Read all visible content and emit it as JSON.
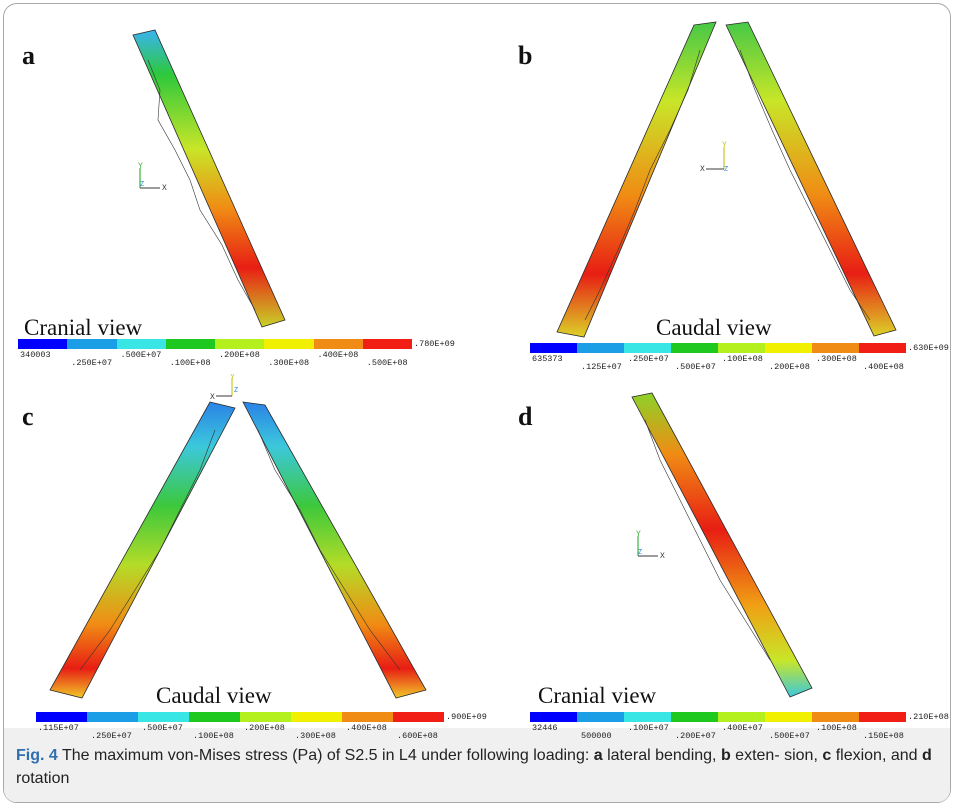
{
  "figure": {
    "caption": {
      "label": "Fig. 4",
      "text_parts": [
        {
          "t": "  The maximum von-Mises stress (Pa) of S2.5 in L4 under following loading: ",
          "b": false
        },
        {
          "t": "a",
          "b": true
        },
        {
          "t": " lateral bending, ",
          "b": false
        },
        {
          "t": "b",
          "b": true
        },
        {
          "t": " exten- sion, ",
          "b": false
        },
        {
          "t": "c",
          "b": true
        },
        {
          "t": " flexion, and ",
          "b": false
        },
        {
          "t": "d",
          "b": true
        },
        {
          "t": " rotation",
          "b": false
        }
      ]
    },
    "panels": [
      {
        "letter": "a",
        "view_label": "Cranial view",
        "colorbar": {
          "colors": [
            "#0000ff",
            "#1c9ee6",
            "#38e6e6",
            "#1ec81e",
            "#b4f01e",
            "#f0f000",
            "#f08c14",
            "#f01e14"
          ],
          "ticks": [
            "340003",
            ".250E+07",
            ".500E+07",
            ".100E+08",
            ".200E+08",
            ".300E+08",
            ".400E+08",
            ".500E+08",
            ".780E+09"
          ]
        },
        "axis": {
          "up": "Y",
          "side": "X",
          "origin": "Z"
        }
      },
      {
        "letter": "b",
        "view_label": "Caudal view",
        "colorbar": {
          "colors": [
            "#0000ff",
            "#1c9ee6",
            "#38e6e6",
            "#1ec81e",
            "#b4f01e",
            "#f0f000",
            "#f08c14",
            "#f01e14"
          ],
          "ticks": [
            "635373",
            ".125E+07",
            ".250E+07",
            ".500E+07",
            ".100E+08",
            ".200E+08",
            ".300E+08",
            ".400E+08",
            ".630E+09"
          ]
        },
        "axis": {
          "up": "Y",
          "side": "X",
          "origin": "Z"
        }
      },
      {
        "letter": "c",
        "view_label": "Caudal view",
        "colorbar": {
          "colors": [
            "#0000ff",
            "#1c9ee6",
            "#38e6e6",
            "#1ec81e",
            "#b4f01e",
            "#f0f000",
            "#f08c14",
            "#f01e14"
          ],
          "ticks": [
            ".115E+07",
            ".250E+07",
            ".500E+07",
            ".100E+08",
            ".200E+08",
            ".300E+08",
            ".400E+08",
            ".600E+08",
            ".900E+09"
          ]
        },
        "axis": {
          "up": "Y",
          "side": "X",
          "origin": "Z"
        }
      },
      {
        "letter": "d",
        "view_label": "Cranial view",
        "colorbar": {
          "colors": [
            "#0000ff",
            "#1c9ee6",
            "#38e6e6",
            "#1ec81e",
            "#b4f01e",
            "#f0f000",
            "#f08c14",
            "#f01e14"
          ],
          "ticks": [
            "32446",
            "500000",
            ".100E+07",
            ".200E+07",
            ".400E+07",
            ".500E+07",
            ".100E+08",
            ".150E+08",
            ".210E+08"
          ]
        },
        "axis": {
          "up": "Y",
          "side": "X",
          "origin": "Z"
        }
      }
    ]
  }
}
